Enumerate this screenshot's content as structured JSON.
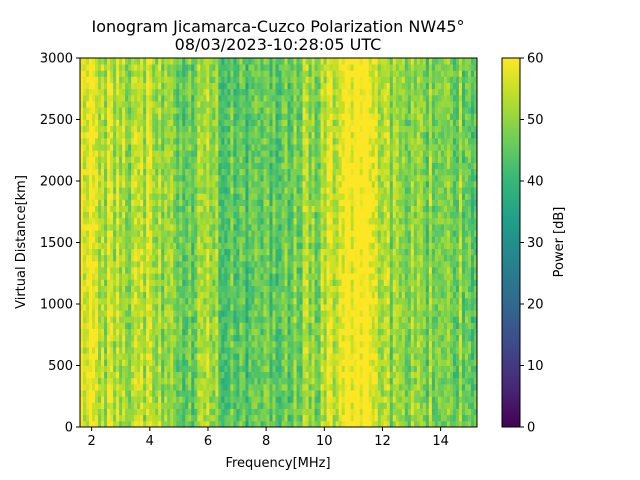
{
  "chart_data": {
    "type": "heatmap",
    "title": "Ionogram Jicamarca-Cuzco Polarization NW45°",
    "subtitle": "08/03/2023-10:28:05 UTC",
    "xlabel": "Frequency[MHz]",
    "ylabel": "Virtual Distance[km]",
    "xlim": [
      1.6,
      15.25
    ],
    "ylim": [
      0,
      3000
    ],
    "x_ticks": [
      2,
      4,
      6,
      8,
      10,
      12,
      14
    ],
    "y_ticks": [
      0,
      500,
      1000,
      1500,
      2000,
      2500,
      3000
    ],
    "colorbar": {
      "label": "Power [dB]",
      "min": 0,
      "max": 60,
      "ticks": [
        0,
        10,
        20,
        30,
        40,
        50,
        60
      ],
      "colormap": "viridis",
      "stops": [
        "#440154",
        "#482878",
        "#3e4a89",
        "#31688e",
        "#26828e",
        "#1f9e89",
        "#35b779",
        "#6ece58",
        "#b5de2b",
        "#fde725"
      ]
    },
    "power_profile": {
      "frequency": [
        1.6,
        2.0,
        2.5,
        3.0,
        3.5,
        4.0,
        4.5,
        5.0,
        5.5,
        6.0,
        6.5,
        7.0,
        7.5,
        8.0,
        8.5,
        9.0,
        9.5,
        10.0,
        10.5,
        11.0,
        11.5,
        12.0,
        12.5,
        13.0,
        13.5,
        14.0,
        14.5,
        15.0
      ],
      "power_db": [
        59,
        58,
        54,
        53,
        52,
        53,
        50,
        48,
        47,
        49,
        47,
        43,
        45,
        46,
        47,
        48,
        49,
        51,
        60,
        60,
        60,
        53,
        48,
        50,
        48,
        49,
        48,
        46
      ]
    }
  }
}
